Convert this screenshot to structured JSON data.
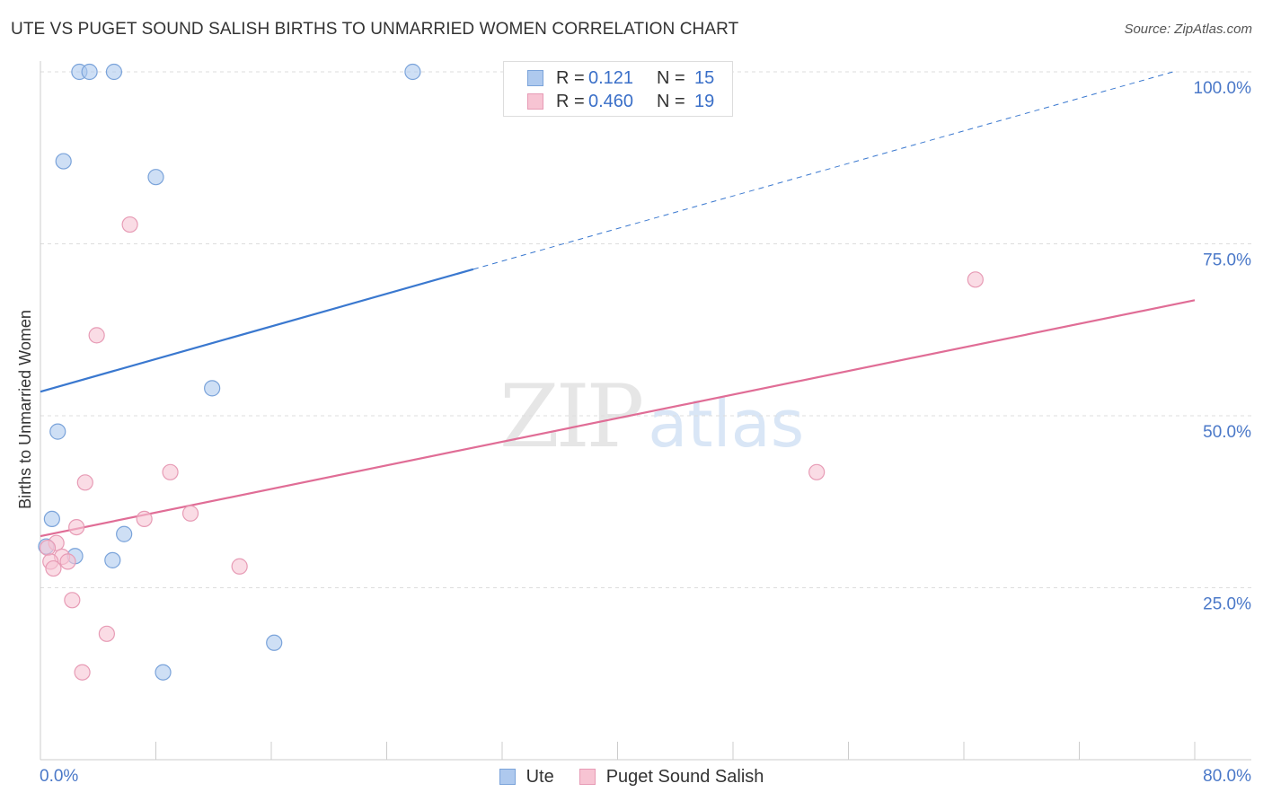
{
  "title": "UTE VS PUGET SOUND SALISH BIRTHS TO UNMARRIED WOMEN CORRELATION CHART",
  "source": "Source: ZipAtlas.com",
  "watermark": {
    "zip": "ZIP",
    "atlas": "atlas"
  },
  "colors": {
    "ute_fill": "#aec9ee",
    "ute_stroke": "#7aa3da",
    "ute_line": "#3a78cf",
    "salish_fill": "#f7c4d3",
    "salish_stroke": "#e79bb5",
    "salish_line": "#e06d96",
    "grid": "#dddddd",
    "axis_text": "#4a78c8"
  },
  "legend": {
    "rows": [
      {
        "r_label": "R =",
        "r_value": "0.121",
        "n_label": "N =",
        "n_value": "15"
      },
      {
        "r_label": "R =",
        "r_value": "0.460",
        "n_label": "N =",
        "n_value": "19"
      }
    ]
  },
  "bottom_legend": {
    "items": [
      {
        "label": "Ute"
      },
      {
        "label": "Puget Sound Salish"
      }
    ]
  },
  "chart_data": {
    "type": "scatter",
    "title": "UTE VS PUGET SOUND SALISH BIRTHS TO UNMARRIED WOMEN CORRELATION CHART",
    "xlabel": "",
    "ylabel": "Births to Unmarried Women",
    "xlim": [
      0,
      80
    ],
    "ylim": [
      0,
      100
    ],
    "x_tick_labels": [
      "0.0%",
      "80.0%"
    ],
    "y_ticks": [
      25,
      50,
      75,
      100
    ],
    "y_tick_labels": [
      "25.0%",
      "50.0%",
      "75.0%",
      "100.0%"
    ],
    "grid": true,
    "series": [
      {
        "name": "Ute",
        "r": 0.121,
        "n": 15,
        "points": [
          {
            "x": 2.7,
            "y": 100
          },
          {
            "x": 3.4,
            "y": 100
          },
          {
            "x": 5.1,
            "y": 100
          },
          {
            "x": 25.8,
            "y": 100
          },
          {
            "x": 1.6,
            "y": 87
          },
          {
            "x": 8.0,
            "y": 84.7
          },
          {
            "x": 11.9,
            "y": 54
          },
          {
            "x": 1.2,
            "y": 47.7
          },
          {
            "x": 0.8,
            "y": 35
          },
          {
            "x": 5.8,
            "y": 32.8
          },
          {
            "x": 0.4,
            "y": 31.0
          },
          {
            "x": 2.4,
            "y": 29.6
          },
          {
            "x": 5.0,
            "y": 29.0
          },
          {
            "x": 16.2,
            "y": 17.0
          },
          {
            "x": 8.5,
            "y": 12.7
          }
        ],
        "trend": {
          "x0": 0,
          "y0": 53.5,
          "x1": 30,
          "y1": 71.3,
          "dash_to_x": 78.5,
          "dash_to_y": 100
        }
      },
      {
        "name": "Puget Sound Salish",
        "r": 0.46,
        "n": 19,
        "points": [
          {
            "x": 6.2,
            "y": 77.8
          },
          {
            "x": 3.9,
            "y": 61.7
          },
          {
            "x": 9.0,
            "y": 41.8
          },
          {
            "x": 3.1,
            "y": 40.3
          },
          {
            "x": 10.4,
            "y": 35.8
          },
          {
            "x": 7.2,
            "y": 35.0
          },
          {
            "x": 2.5,
            "y": 33.8
          },
          {
            "x": 1.1,
            "y": 31.5
          },
          {
            "x": 0.5,
            "y": 30.8
          },
          {
            "x": 1.5,
            "y": 29.5
          },
          {
            "x": 1.9,
            "y": 28.8
          },
          {
            "x": 0.7,
            "y": 28.8
          },
          {
            "x": 0.9,
            "y": 27.8
          },
          {
            "x": 13.8,
            "y": 28.1
          },
          {
            "x": 2.2,
            "y": 23.2
          },
          {
            "x": 4.6,
            "y": 18.3
          },
          {
            "x": 2.9,
            "y": 12.7
          },
          {
            "x": 53.8,
            "y": 41.8
          },
          {
            "x": 64.8,
            "y": 69.8
          }
        ],
        "trend": {
          "x0": 0,
          "y0": 32.5,
          "x1": 80,
          "y1": 66.8
        }
      }
    ]
  }
}
